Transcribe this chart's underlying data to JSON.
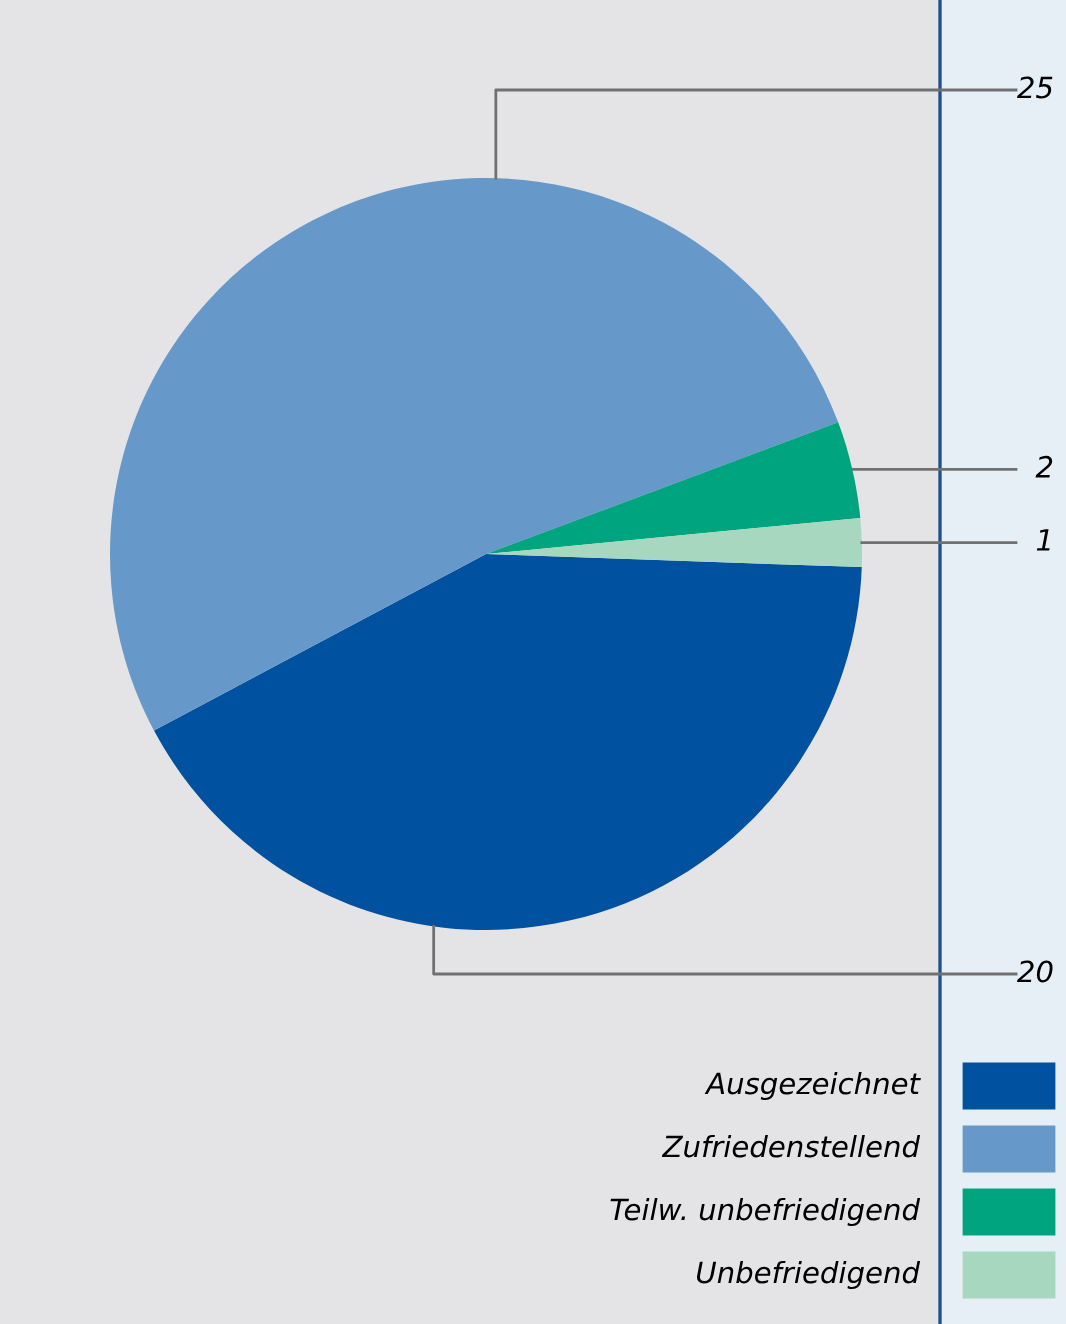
{
  "chart_data": {
    "type": "pie",
    "categories": [
      "Ausgezeichnet",
      "Zufriedenstellend",
      "Teilw. unbefriedigend",
      "Unbefriedigend"
    ],
    "values": [
      20,
      25,
      2,
      1
    ],
    "colors": [
      "#0051a0",
      "#6699c9",
      "#00a47e",
      "#a8d7c0"
    ],
    "data_labels": true,
    "legend": "bottom right"
  }
}
